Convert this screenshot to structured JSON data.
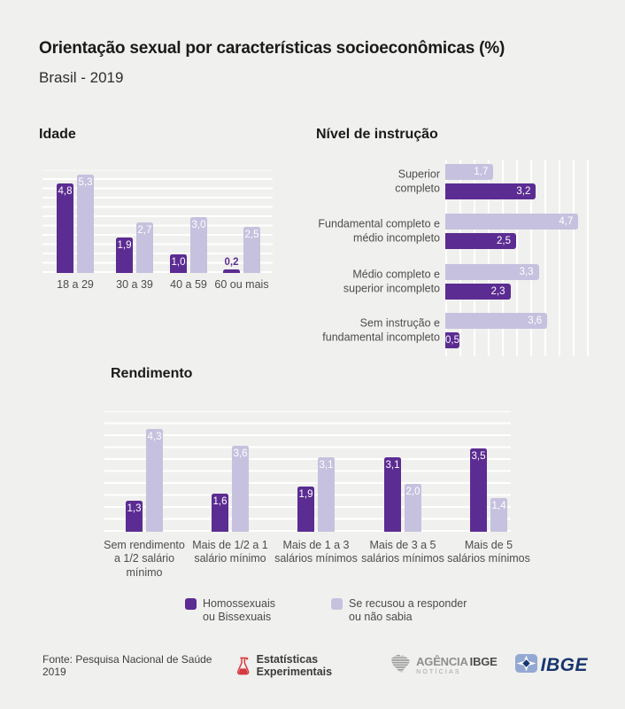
{
  "header": {
    "title": "Orientação sexual por características socioeconômicas (%)",
    "subtitle": "Brasil - 2019"
  },
  "chart_data": [
    {
      "id": "idade",
      "type": "bar",
      "orientation": "vertical",
      "title": "Idade",
      "categories": [
        "18 a 29",
        "30 a 39",
        "40 a 59",
        "60 ou mais"
      ],
      "series": [
        {
          "name": "Homossexuais ou Bissexuais",
          "color": "#5b2c92",
          "values": [
            4.8,
            1.9,
            1.0,
            0.2
          ]
        },
        {
          "name": "Se recusou a responder ou não sabia",
          "color": "#c6c1de",
          "values": [
            5.3,
            2.7,
            3.0,
            2.5
          ]
        }
      ],
      "ylim": [
        0,
        5.5
      ],
      "gridlines": "horizontal white lines every 0.5",
      "value_label_format": "decimal comma, one digit"
    },
    {
      "id": "nivel-instrucao",
      "type": "bar",
      "orientation": "horizontal",
      "title": "Nível de instrução",
      "categories": [
        "Superior\ncompleto",
        "Fundamental completo e\nmédio incompleto",
        "Médio completo e\nsuperior incompleto",
        "Sem instrução e\nfundamental incompleto"
      ],
      "series": [
        {
          "name": "Se recusou a responder ou não sabia",
          "color": "#c6c1de",
          "values": [
            1.7,
            4.7,
            3.3,
            3.6
          ]
        },
        {
          "name": "Homossexuais ou Bissexuais",
          "color": "#5b2c92",
          "values": [
            3.2,
            2.5,
            2.3,
            0.5
          ]
        }
      ],
      "xlim": [
        0,
        5.0
      ],
      "gridlines": "vertical white lines every 0.5",
      "value_label_format": "decimal comma, one digit"
    },
    {
      "id": "rendimento",
      "type": "bar",
      "orientation": "vertical",
      "title": "Rendimento",
      "categories": [
        "Sem rendimento\na 1/2 salário\nmínimo",
        "Mais de 1/2 a 1\nsalário mínimo",
        "Mais de 1 a 3\nsalários mínimos",
        "Mais de 3 a 5\nsalários mínimos",
        "Mais de 5\nsalários mínimos"
      ],
      "series": [
        {
          "name": "Homossexuais ou Bissexuais",
          "color": "#5b2c92",
          "values": [
            1.3,
            1.6,
            1.9,
            3.1,
            3.5
          ]
        },
        {
          "name": "Se recusou a responder ou não sabia",
          "color": "#c6c1de",
          "values": [
            4.3,
            3.6,
            3.1,
            2.0,
            1.4
          ]
        }
      ],
      "ylim": [
        0,
        5.0
      ],
      "gridlines": "horizontal white lines every 0.5",
      "value_label_format": "decimal comma, one digit"
    }
  ],
  "legend": {
    "items": [
      {
        "label": "Homossexuais\nou Bissexuais",
        "color": "#5b2c92"
      },
      {
        "label": "Se recusou a responder\nou não sabia",
        "color": "#c6c1de"
      }
    ]
  },
  "footer": {
    "source": "Fonte: Pesquisa Nacional de Saúde 2019",
    "experimental_label": "Estatísticas Experimentais",
    "agencia_logo": {
      "word1": "AGÊNCIA",
      "word2": "IBGE",
      "word3": "NOTÍCIAS"
    },
    "ibge_logo_text": "IBGE"
  },
  "colors": {
    "background": "#f0f0ee",
    "dark_purple": "#5b2c92",
    "light_purple": "#c6c1de",
    "gridline": "#ffffff",
    "flask_red": "#d6393f",
    "ibge_navy": "#17356e",
    "ibge_light_blue": "#93a9d4"
  }
}
